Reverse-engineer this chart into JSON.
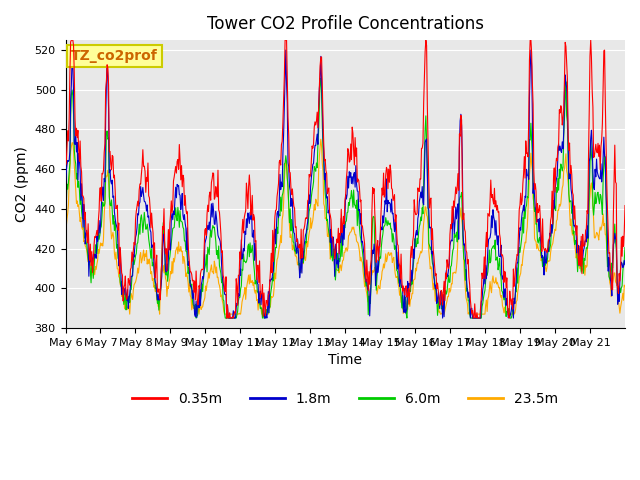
{
  "title": "Tower CO2 Profile Concentrations",
  "ylabel": "CO2 (ppm)",
  "xlabel": "Time",
  "annotation": "TZ_co2prof",
  "ylim": [
    380,
    525
  ],
  "yticks": [
    380,
    400,
    420,
    440,
    460,
    480,
    500,
    520
  ],
  "xtick_labels": [
    "May 6",
    "May 7",
    "May 8",
    "May 9",
    "May 10",
    "May 11",
    "May 12",
    "May 13",
    "May 14",
    "May 15",
    "May 16",
    "May 17",
    "May 18",
    "May 19",
    "May 20",
    "May 21"
  ],
  "colors": {
    "0.35m": "#ff0000",
    "1.8m": "#0000cc",
    "6.0m": "#00cc00",
    "23.5m": "#ffaa00"
  },
  "legend_labels": [
    "0.35m",
    "1.8m",
    "6.0m",
    "23.5m"
  ],
  "background_color": "#e8e8e8",
  "annotation_bg": "#ffff99",
  "annotation_edge": "#cccc00"
}
